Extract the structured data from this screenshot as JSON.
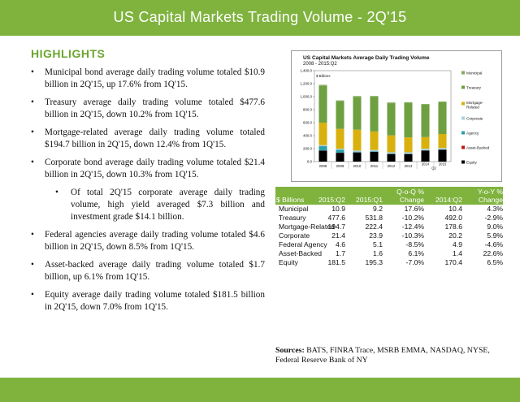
{
  "header": {
    "title": "US Capital Markets Trading Volume - 2Q'15"
  },
  "highlights": {
    "title": "HIGHLIGHTS",
    "bullets": [
      {
        "text": "Municipal bond average daily trading volume totaled $10.9 billion in 2Q'15, up 17.6% from 1Q'15.",
        "sub": false
      },
      {
        "text": "Treasury average daily trading volume totaled $477.6 billion in 2Q'15, down 10.2% from 1Q'15.",
        "sub": false
      },
      {
        "text": "Mortgage-related average daily trading volume totaled $194.7 billion in 2Q'15, down 12.4% from 1Q'15.",
        "sub": false
      },
      {
        "text": "Corporate bond average daily trading volume totaled $21.4 billion in 2Q'15, down 10.3% from 1Q'15.",
        "sub": false
      },
      {
        "text": "Of total 2Q'15 corporate average daily trading volume, high yield averaged $7.3 billion and investment grade $14.1 billion.",
        "sub": true
      },
      {
        "text": "Federal agencies average daily trading volume totaled $4.6 billion in 2Q'15, down 8.5% from 1Q'15.",
        "sub": false
      },
      {
        "text": "Asset-backed average daily trading volume totaled $1.7 billion, up 6.1% from 1Q'15.",
        "sub": false
      },
      {
        "text": "Equity average daily trading volume totaled $181.5 billion in 2Q'15, down 7.0% from 1Q'15.",
        "sub": false
      }
    ],
    "bullet_glyph": "•"
  },
  "chart_data": {
    "type": "bar",
    "stacked": true,
    "title": "US Capital Markets Average Daily Trading Volume",
    "subtitle": "2008 - 2015:Q2",
    "ylabel": "$ Billions",
    "ylim": [
      0,
      1400
    ],
    "yticks": [
      "0.0",
      "200.0",
      "400.0",
      "600.0",
      "800.0",
      "1,000.0",
      "1,200.0",
      "1,400.0"
    ],
    "categories": [
      "2008",
      "2009",
      "2010",
      "2011",
      "2012",
      "2013",
      "2014",
      "2015"
    ],
    "x_group_labels": [
      {
        "label": "2014",
        "at": 6
      },
      {
        "label": "2015",
        "at": 7
      },
      {
        "label": "Q2",
        "at": 6.5
      }
    ],
    "series": [
      {
        "name": "Equity",
        "color": "#000000",
        "values": [
          170,
          135,
          140,
          150,
          115,
          115,
          170,
          182
        ]
      },
      {
        "name": "Asset-Backed",
        "color": "#c0161b",
        "values": [
          2,
          2,
          2,
          2,
          2,
          2,
          2,
          2
        ]
      },
      {
        "name": "Agency",
        "color": "#2aa0a8",
        "values": [
          65,
          45,
          12,
          9,
          8,
          7,
          5,
          5
        ]
      },
      {
        "name": "Corporate",
        "color": "#a9cfe0",
        "values": [
          17,
          17,
          17,
          18,
          19,
          20,
          21,
          21
        ]
      },
      {
        "name": "Mortgage-Related",
        "color": "#d9b10f",
        "values": [
          345,
          305,
          320,
          285,
          260,
          230,
          180,
          215
        ]
      },
      {
        "name": "Treasury",
        "color": "#6ea041",
        "values": [
          565,
          425,
          505,
          535,
          495,
          530,
          500,
          490
        ]
      },
      {
        "name": "Municipal",
        "color": "#7fa85a",
        "values": [
          18,
          13,
          13,
          11,
          11,
          11,
          10,
          10
        ]
      }
    ],
    "legend_position": "right"
  },
  "table": {
    "headers_top": [
      "",
      "",
      "",
      "Q-o-Q %",
      "",
      "Y-o-Y %"
    ],
    "headers": [
      "$ Billions",
      "2015:Q2",
      "2015:Q1",
      "Change",
      "2014:Q2",
      "Change"
    ],
    "rows": [
      [
        "Municipal",
        "10.9",
        "9.2",
        "17.6%",
        "10.4",
        "4.3%"
      ],
      [
        "Treasury",
        "477.6",
        "531.8",
        "-10.2%",
        "492.0",
        "-2.9%"
      ],
      [
        "Mortgage-Related",
        "194.7",
        "222.4",
        "-12.4%",
        "178.6",
        "9.0%"
      ],
      [
        "Corporate",
        "21.4",
        "23.9",
        "-10.3%",
        "20.2",
        "5.9%"
      ],
      [
        "Federal Agency",
        "4.6",
        "5.1",
        "-8.5%",
        "4.9",
        "-4.6%"
      ],
      [
        "Asset-Backed",
        "1.7",
        "1.6",
        "6.1%",
        "1.4",
        "22.6%"
      ],
      [
        "Equity",
        "181.5",
        "195.3",
        "-7.0%",
        "170.4",
        "6.5%"
      ]
    ]
  },
  "sources": {
    "label": "Sources:",
    "text": " BATS, FINRA Trace, MSRB EMMA, NASDAQ, NYSE, Federal Reserve Bank of NY"
  },
  "colors": {
    "brand_green": "#7fb33e",
    "highlight_green": "#6aa62e"
  }
}
